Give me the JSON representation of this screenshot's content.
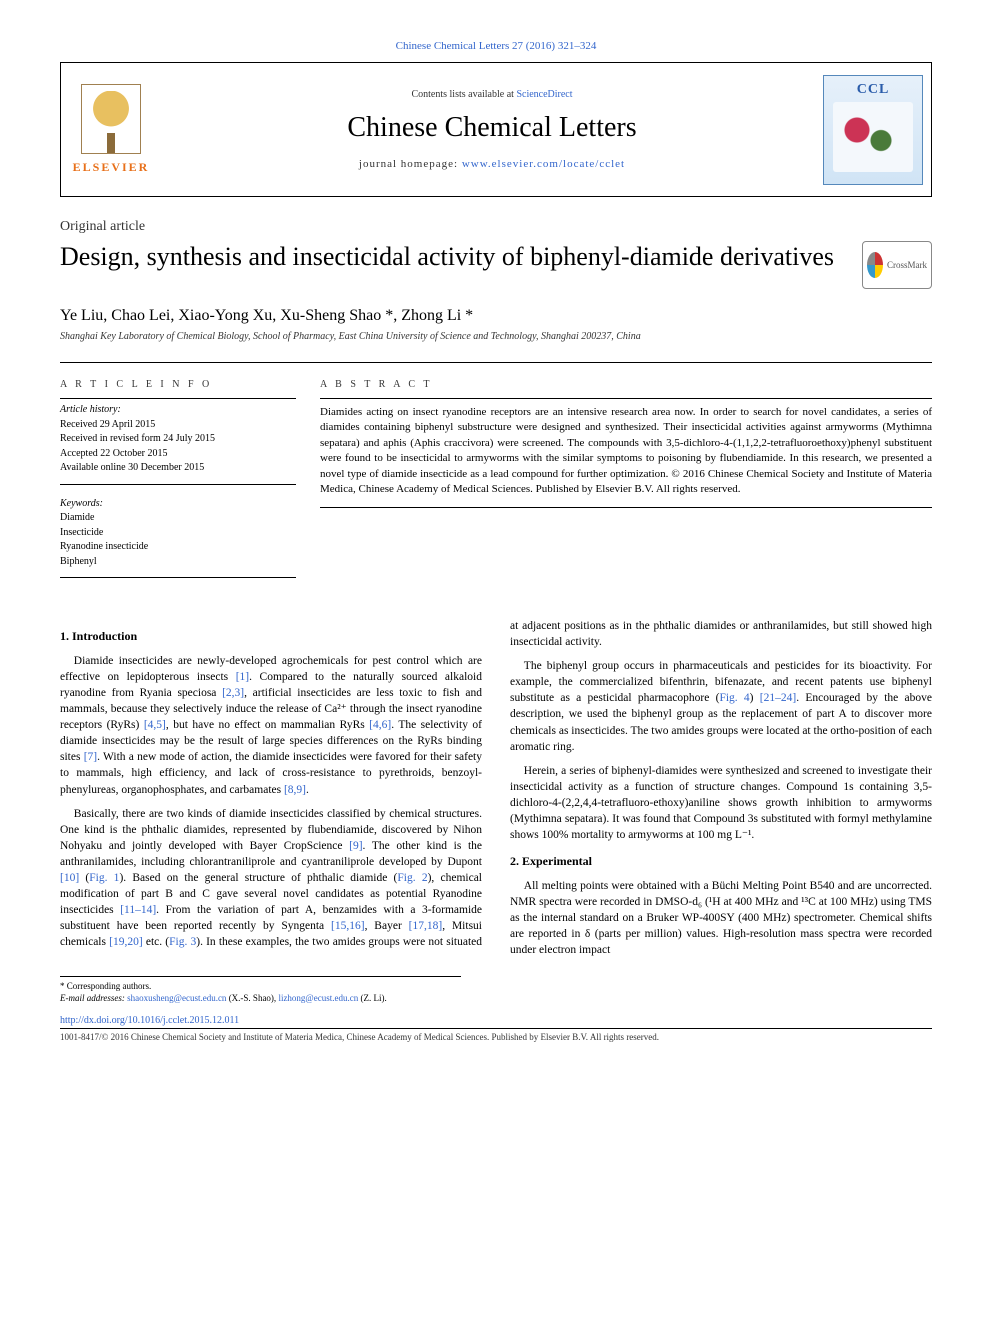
{
  "top_link": "Chinese Chemical Letters 27 (2016) 321–324",
  "header": {
    "elsevier": "ELSEVIER",
    "contents_prefix": "Contents lists available at ",
    "contents_link": "ScienceDirect",
    "journal": "Chinese Chemical Letters",
    "homepage_prefix": "journal homepage: ",
    "homepage_url": "www.elsevier.com/locate/cclet",
    "ccl": "CCL"
  },
  "article_type": "Original article",
  "title": "Design, synthesis and insecticidal activity of biphenyl-diamide derivatives",
  "crossmark": "CrossMark",
  "authors_html": "Ye Liu, Chao Lei, Xiao-Yong Xu, Xu-Sheng Shao *, Zhong Li *",
  "affiliation": "Shanghai Key Laboratory of Chemical Biology, School of Pharmacy, East China University of Science and Technology, Shanghai 200237, China",
  "info_head": "A R T I C L E   I N F O",
  "abstract_head": "A B S T R A C T",
  "history": {
    "label": "Article history:",
    "received": "Received 29 April 2015",
    "revised": "Received in revised form 24 July 2015",
    "accepted": "Accepted 22 October 2015",
    "online": "Available online 30 December 2015"
  },
  "keywords": {
    "label": "Keywords:",
    "items": [
      "Diamide",
      "Insecticide",
      "Ryanodine insecticide",
      "Biphenyl"
    ]
  },
  "abstract": "Diamides acting on insect ryanodine receptors are an intensive research area now. In order to search for novel candidates, a series of diamides containing biphenyl substructure were designed and synthesized. Their insecticidal activities against armyworms (Mythimna sepatara) and aphis (Aphis craccivora) were screened. The compounds with 3,5-dichloro-4-(1,1,2,2-tetrafluoroethoxy)phenyl substituent were found to be insecticidal to armyworms with the similar symptoms to poisoning by flubendiamide. In this research, we presented a novel type of diamide insecticide as a lead compound for further optimization. © 2016 Chinese Chemical Society and Institute of Materia Medica, Chinese Academy of Medical Sciences. Published by Elsevier B.V. All rights reserved.",
  "section1": {
    "heading": "1. Introduction",
    "p1a": "Diamide insecticides are newly-developed agrochemicals for pest control which are effective on lepidopterous insects ",
    "r1": "[1]",
    "p1b": ". Compared to the naturally sourced alkaloid ryanodine from Ryania speciosa ",
    "r2": "[2,3]",
    "p1c": ", artificial insecticides are less toxic to fish and mammals, because they selectively induce the release of Ca²⁺ through the insect ryanodine receptors (RyRs) ",
    "r3": "[4,5]",
    "p1d": ", but have no effect on mammalian RyRs ",
    "r4": "[4,6]",
    "p1e": ". The selectivity of diamide insecticides may be the result of large species differences on the RyRs binding sites ",
    "r5": "[7]",
    "p1f": ". With a new mode of action, the diamide insecticides were favored for their safety to mammals, high efficiency, and lack of cross-resistance to pyrethroids, benzoyl-phenylureas, organophosphates, and carbamates ",
    "r6": "[8,9]",
    "p1g": ".",
    "p2a": "Basically, there are two kinds of diamide insecticides classified by chemical structures. One kind is the phthalic diamides, represented by flubendiamide, discovered by Nihon Nohyaku and jointly developed with Bayer CropScience ",
    "r7": "[9]",
    "p2b": ". The other kind is the anthranilamides, including chlorantraniliprole and cyantraniliprole developed by Dupont ",
    "r8": "[10]",
    "p2c": " (",
    "f1": "Fig. 1",
    "p2d": "). Based on the general structure of phthalic diamide (",
    "f2": "Fig. 2",
    "p2e": "), chemical modification of part B and C gave several novel candidates as potential Ryanodine insecticides ",
    "r9": "[11–14]",
    "p2f": ". From the variation of part A, benzamides with a 3-formamide substituent have been reported recently by Syngenta ",
    "r10": "[15,16]",
    "p2g": ", Bayer ",
    "r11": "[17,18]",
    "p2h": ", Mitsui chemicals ",
    "r12": "[19,20]",
    "p2i": " etc. (",
    "f3": "Fig. 3",
    "p2j": "). In these examples, the two amides groups were not situated at adjacent positions as in the phthalic diamides or anthranilamides, but still showed high insecticidal activity.",
    "p3a": "The biphenyl group occurs in pharmaceuticals and pesticides for its bioactivity. For example, the commercialized bifenthrin, bifenazate, and recent patents use biphenyl substitute as a pesticidal pharmacophore (",
    "f4": "Fig. 4",
    "p3b": ") ",
    "r13": "[21–24]",
    "p3c": ". Encouraged by the above description, we used the biphenyl group as the replacement of part A to discover more chemicals as insecticides. The two amides groups were located at the ortho-position of each aromatic ring.",
    "p4": "Herein, a series of biphenyl-diamides were synthesized and screened to investigate their insecticidal activity as a function of structure changes. Compound 1s containing 3,5-dichloro-4-(2,2,4,4-tetrafluoro-ethoxy)aniline shows growth inhibition to armyworms (Mythimna sepatara). It was found that Compound 3s substituted with formyl methylamine shows 100% mortality to armyworms at 100 mg L⁻¹."
  },
  "section2": {
    "heading": "2. Experimental",
    "p1": "All melting points were obtained with a Büchi Melting Point B540 and are uncorrected. NMR spectra were recorded in DMSO-d₆ (¹H at 400 MHz and ¹³C at 100 MHz) using TMS as the internal standard on a Bruker WP-400SY (400 MHz) spectrometer. Chemical shifts are reported in δ (parts per million) values. High-resolution mass spectra were recorded under electron impact"
  },
  "footnotes": {
    "corr": "* Corresponding authors.",
    "emails_label": "E-mail addresses: ",
    "email1": "shaoxusheng@ecust.edu.cn",
    "email1_name": " (X.-S. Shao), ",
    "email2": "lizhong@ecust.edu.cn",
    "email2_name": " (Z. Li)."
  },
  "doi": "http://dx.doi.org/10.1016/j.cclet.2015.12.011",
  "bottom_copyright": "1001-8417/© 2016 Chinese Chemical Society and Institute of Materia Medica, Chinese Academy of Medical Sciences. Published by Elsevier B.V. All rights reserved.",
  "colors": {
    "link": "#3366cc",
    "text": "#000000",
    "elsevier_orange": "#e8701a"
  }
}
